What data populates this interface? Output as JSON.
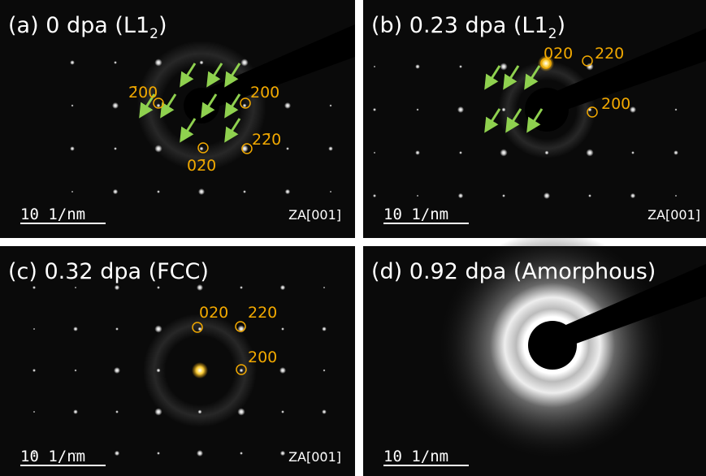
{
  "panels": [
    {
      "title": "(a) 0 dpa (L1",
      "title_sub": "2",
      "title_end": ")",
      "scale_bar": "10 1/nm",
      "zone_axis": "ZA[001]",
      "spot_labels": [
        "2̄00",
        "200",
        "22̄0",
        "02̄0"
      ]
    },
    {
      "title": "(b) 0.23 dpa (L1",
      "title_sub": "2",
      "title_end": ")",
      "scale_bar": "10 1/nm",
      "zone_axis": "ZA[001]",
      "spot_labels": [
        "020",
        "220",
        "200"
      ]
    },
    {
      "title": "(c) 0.32 dpa (FCC)",
      "scale_bar": "10 1/nm",
      "zone_axis": "ZA[001]",
      "spot_labels": [
        "020",
        "220",
        "200"
      ]
    },
    {
      "title": "(d) 0.92 dpa (Amorphous)",
      "scale_bar": "10 1/nm"
    }
  ]
}
